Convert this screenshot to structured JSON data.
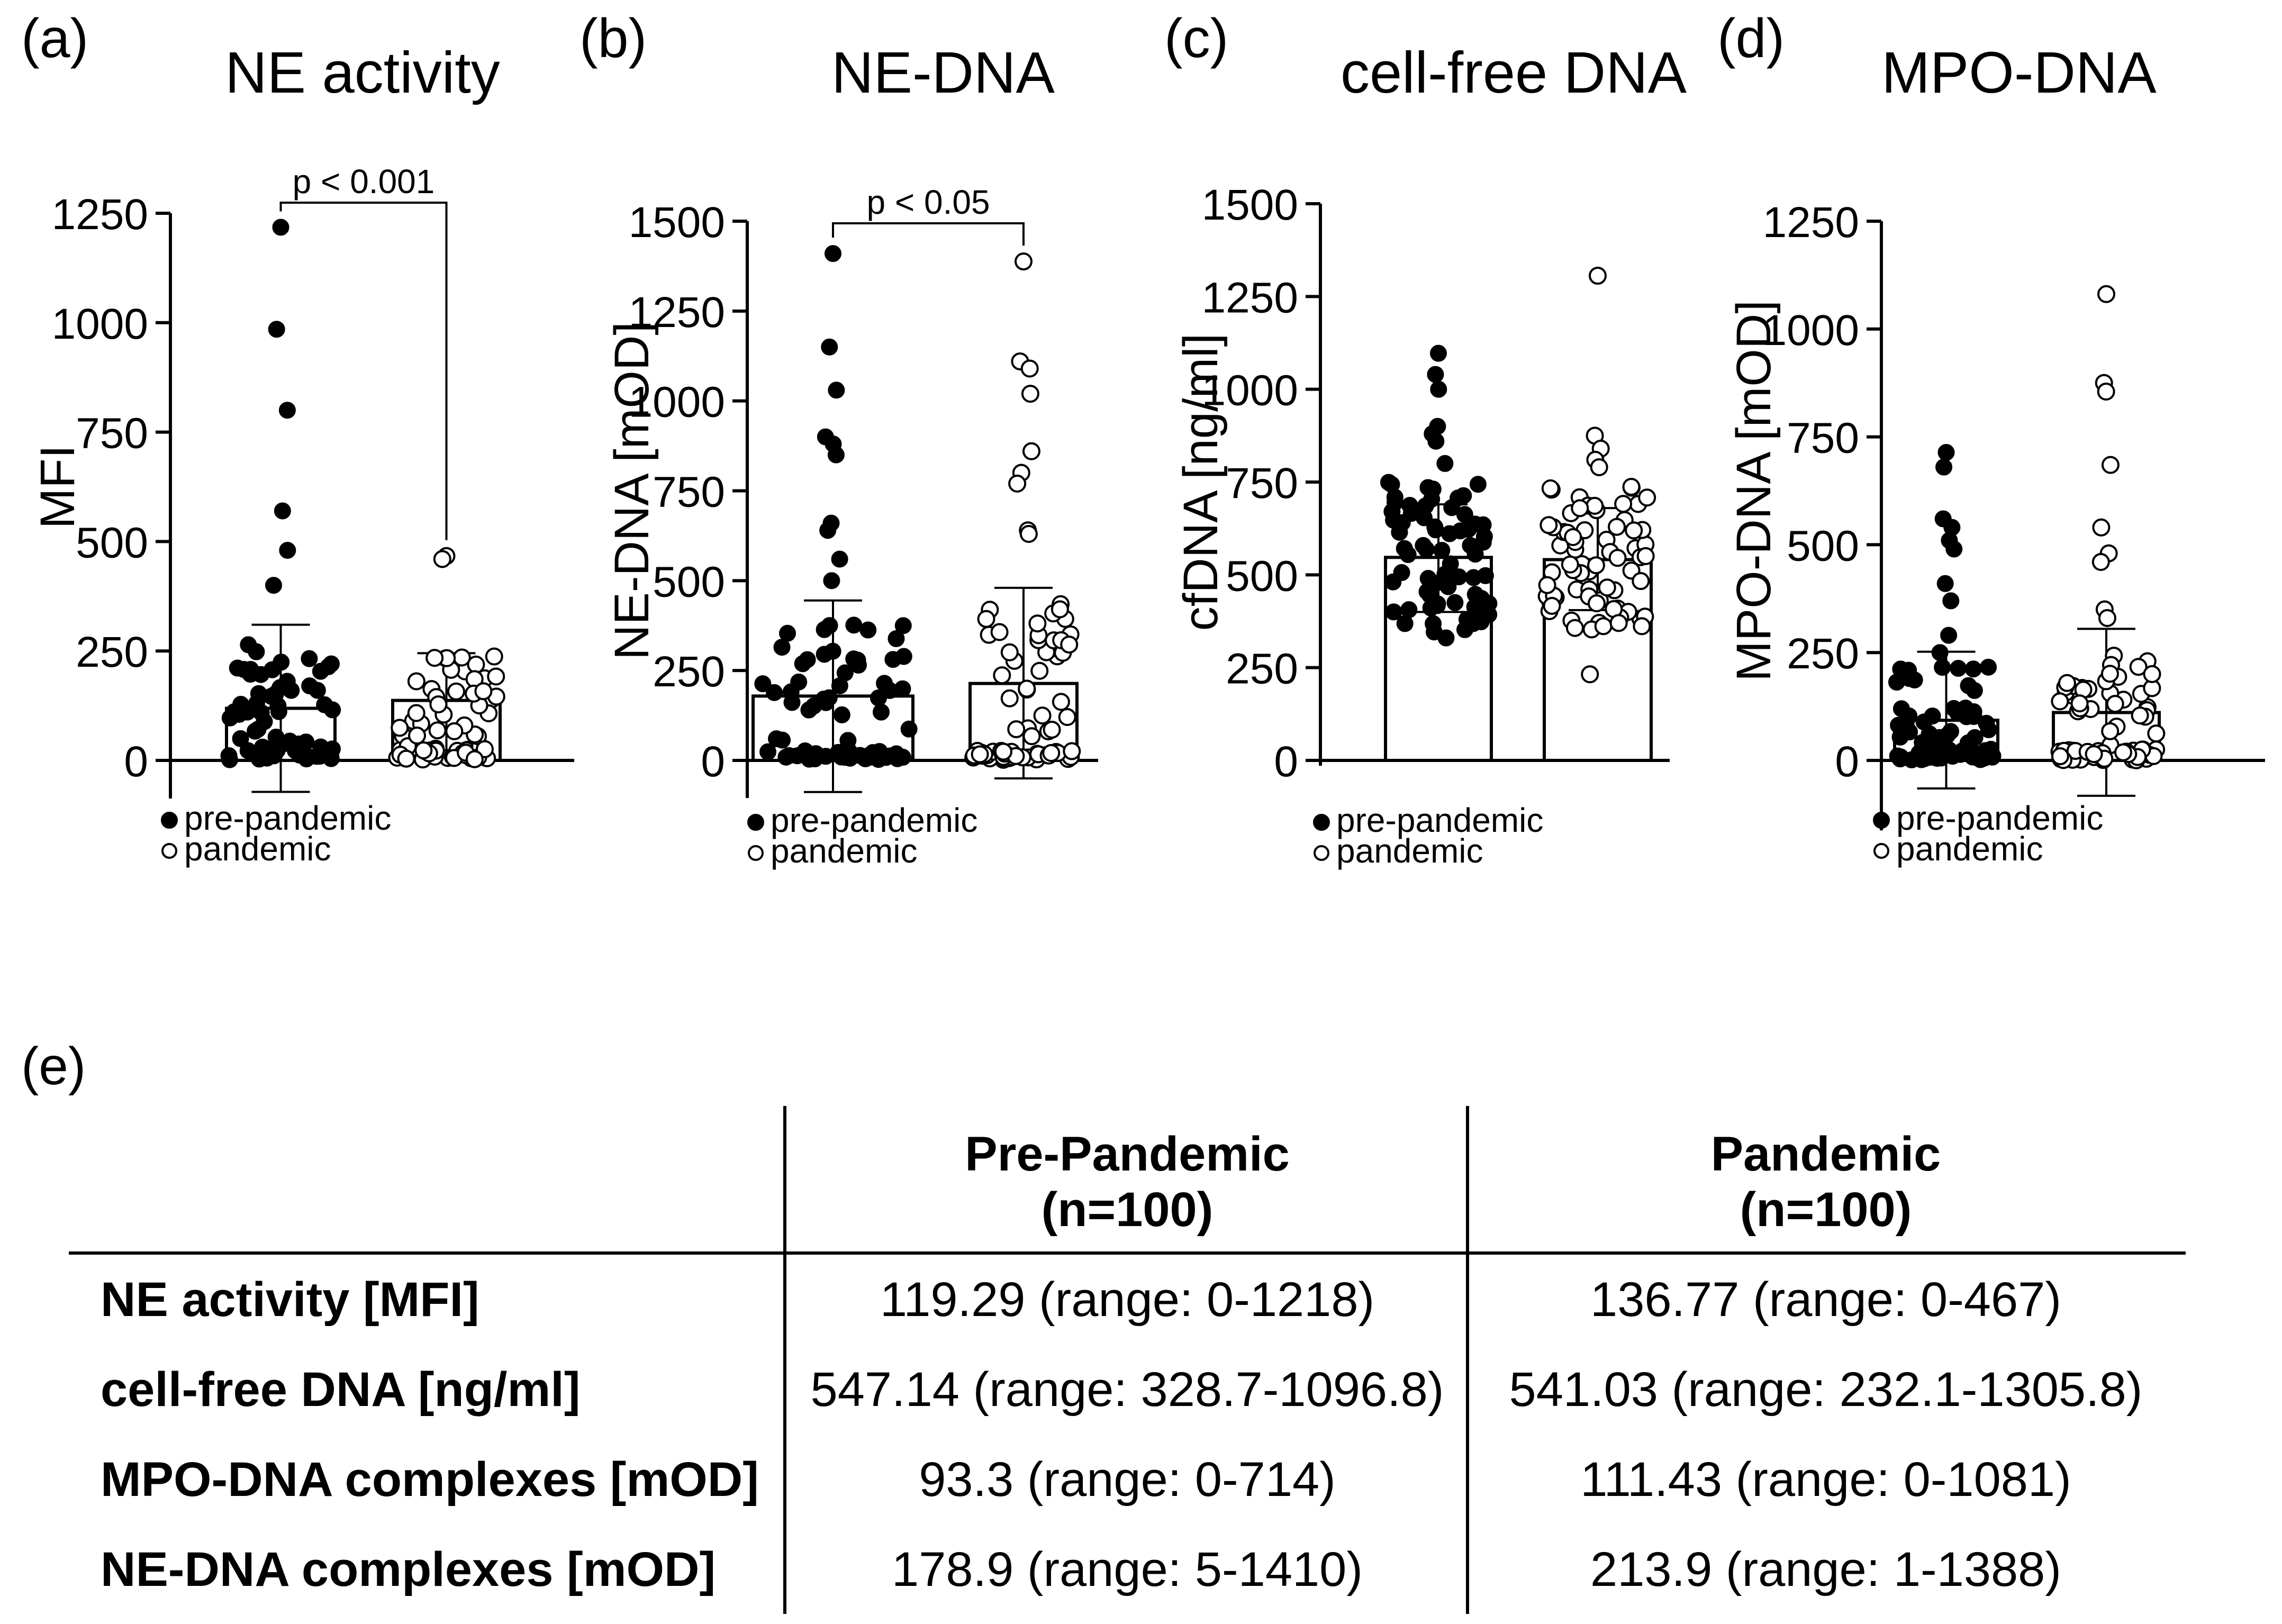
{
  "chart_data": [
    {
      "panel": "(a)",
      "type": "bar",
      "title": "NE activity",
      "ylabel": "MFI",
      "ylim": [
        -75,
        1250
      ],
      "yticks": [
        0,
        250,
        500,
        750,
        1000,
        1250
      ],
      "legend": [
        "pre-pandemic",
        "pandemic"
      ],
      "legend_position": "bottom-left",
      "significance": "p < 0.001",
      "series": [
        {
          "name": "pre-pandemic",
          "mean": 119,
          "error_low": -72,
          "error_high": 310,
          "points_max": 1218,
          "outliers": [
            1218,
            985,
            800,
            570,
            480,
            400
          ]
        },
        {
          "name": "pandemic",
          "mean": 137,
          "error_low": 0,
          "error_high": 245,
          "points_max": 467,
          "outliers": [
            467,
            460
          ]
        }
      ]
    },
    {
      "panel": "(b)",
      "type": "bar",
      "title": "NE-DNA",
      "ylabel": "NE-DNA [mOD]",
      "ylim": [
        -90,
        1500
      ],
      "yticks": [
        0,
        250,
        500,
        750,
        1000,
        1250,
        1500
      ],
      "legend": [
        "pre-pandemic",
        "pandemic"
      ],
      "legend_position": "bottom-left",
      "significance": "p < 0.05",
      "series": [
        {
          "name": "pre-pandemic",
          "mean": 179,
          "error_low": -88,
          "error_high": 445,
          "points_max": 1410,
          "outliers": [
            1410,
            1150,
            1030,
            900,
            880,
            850,
            660,
            640,
            560,
            500
          ]
        },
        {
          "name": "pandemic",
          "mean": 214,
          "error_low": -50,
          "error_high": 480,
          "points_max": 1388,
          "outliers": [
            1388,
            1110,
            1090,
            1020,
            860,
            800,
            770,
            640,
            630
          ]
        }
      ]
    },
    {
      "panel": "(c)",
      "type": "bar",
      "title": "cell-free DNA",
      "ylabel": "cfDNA [ng/ml]",
      "ylim": [
        0,
        1500
      ],
      "yticks": [
        0,
        250,
        500,
        750,
        1000,
        1250,
        1500
      ],
      "legend": [
        "pre-pandemic",
        "pandemic"
      ],
      "legend_position": "bottom-left",
      "significance": "",
      "series": [
        {
          "name": "pre-pandemic",
          "mean": 547,
          "error_low": 400,
          "error_high": 690,
          "points_max": 1097,
          "outliers": [
            1097,
            1040,
            1000,
            900,
            880,
            860,
            800,
            330
          ]
        },
        {
          "name": "pandemic",
          "mean": 541,
          "error_low": 405,
          "error_high": 680,
          "points_max": 1306,
          "outliers": [
            1306,
            875,
            840,
            810,
            790,
            232
          ]
        }
      ]
    },
    {
      "panel": "(d)",
      "type": "bar",
      "title": "MPO-DNA",
      "ylabel": "MPO-DNA [mOD]",
      "ylim": [
        -150,
        1250
      ],
      "yticks": [
        0,
        250,
        500,
        750,
        1000,
        1250
      ],
      "legend": [
        "pre-pandemic",
        "pandemic"
      ],
      "legend_position": "bottom-left",
      "significance": "",
      "series": [
        {
          "name": "pre-pandemic",
          "mean": 93,
          "error_low": -65,
          "error_high": 252,
          "points_max": 714,
          "outliers": [
            714,
            680,
            560,
            540,
            510,
            490,
            410,
            370,
            290,
            250
          ]
        },
        {
          "name": "pandemic",
          "mean": 111,
          "error_low": -82,
          "error_high": 305,
          "points_max": 1081,
          "outliers": [
            1081,
            875,
            855,
            685,
            540,
            480,
            460,
            350,
            330
          ]
        }
      ]
    },
    {
      "panel": "(e)",
      "type": "table",
      "columns": [
        "",
        "Pre-Pandemic\n(n=100)",
        "Pandemic\n(n=100)"
      ],
      "column_lines": [
        [
          "Pre-Pandemic",
          "(n=100)"
        ],
        [
          "Pandemic",
          "(n=100)"
        ]
      ],
      "rows": [
        [
          "NE activity [MFI]",
          "119.29 (range: 0-1218)",
          "136.77 (range: 0-467)"
        ],
        [
          "cell-free DNA [ng/ml]",
          "547.14 (range: 328.7-1096.8)",
          "541.03 (range: 232.1-1305.8)"
        ],
        [
          "MPO-DNA complexes [mOD]",
          "93.3 (range: 0-714)",
          "111.43 (range: 0-1081)"
        ],
        [
          "NE-DNA complexes [mOD]",
          "178.9 (range: 5-1410)",
          "213.9 (range: 1-1388)"
        ]
      ]
    }
  ]
}
